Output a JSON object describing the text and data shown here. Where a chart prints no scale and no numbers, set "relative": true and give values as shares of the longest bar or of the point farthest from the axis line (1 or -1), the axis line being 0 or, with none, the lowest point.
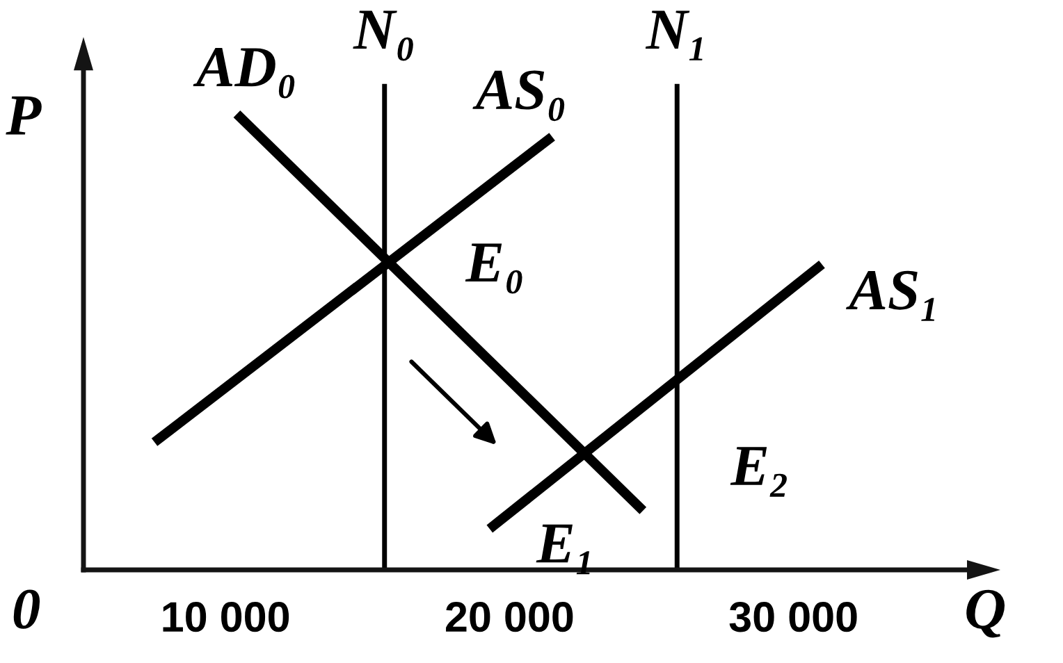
{
  "chart_data": {
    "type": "line",
    "relative": true,
    "xlabel": "Q",
    "ylabel": "P",
    "xlim": [
      5000,
      36500
    ],
    "xticks": [
      {
        "value": 10000,
        "label": "10 000"
      },
      {
        "value": 20000,
        "label": "20 000"
      },
      {
        "value": 30000,
        "label": "30 000"
      }
    ],
    "series": [
      {
        "name": "AD₀",
        "color": "#000000",
        "x": [
          10400,
          24700
        ],
        "values": [
          1,
          0.13
        ]
      },
      {
        "name": "AS₀",
        "color": "#000000",
        "x": [
          7500,
          21500
        ],
        "values": [
          0.28,
          0.95
        ]
      },
      {
        "name": "AS₁",
        "color": "#000000",
        "x": [
          19300,
          31000
        ],
        "values": [
          0.09,
          0.67
        ]
      }
    ],
    "ref_lines": [
      {
        "axis": "x",
        "value": 15600,
        "label": "N₀",
        "color": "#000000"
      },
      {
        "axis": "x",
        "value": 25900,
        "label": "N₁",
        "color": "#000000"
      }
    ],
    "annotations": [
      "0",
      {
        "text": "E₀",
        "x": 15600,
        "y": 0.68
      },
      {
        "text": "E₁",
        "x": 22600,
        "y": 0.25
      },
      {
        "text": "E₂",
        "x": 25900,
        "y": 0.42
      }
    ],
    "line_style": "solid"
  }
}
